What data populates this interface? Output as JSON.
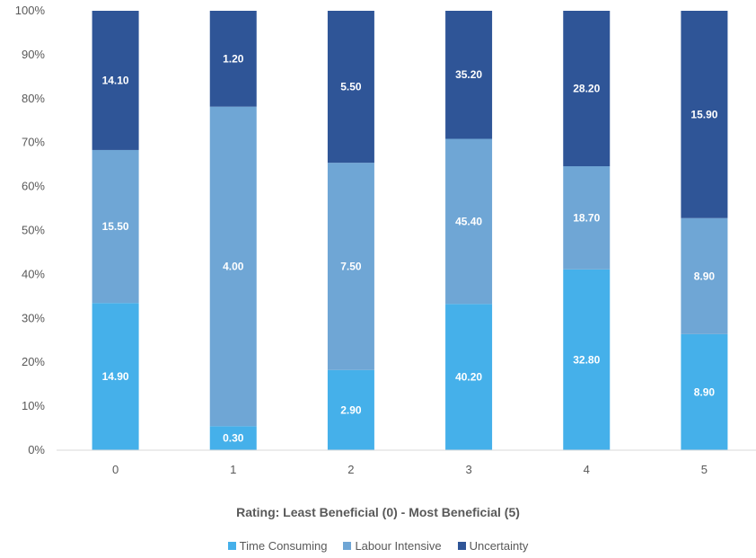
{
  "chart_data": {
    "type": "bar",
    "stacked": "percent",
    "categories": [
      "0",
      "1",
      "2",
      "3",
      "4",
      "5"
    ],
    "series": [
      {
        "name": "Time Consuming",
        "color": "#45b0ea",
        "values": [
          14.9,
          0.3,
          2.9,
          40.2,
          32.8,
          8.9
        ]
      },
      {
        "name": "Labour Intensive",
        "color": "#6fa6d5",
        "values": [
          15.5,
          4.0,
          7.5,
          45.4,
          18.7,
          8.9
        ]
      },
      {
        "name": "Uncertainty",
        "color": "#2f5597",
        "values": [
          14.1,
          1.2,
          5.5,
          35.2,
          28.2,
          15.9
        ]
      }
    ],
    "data_labels": [
      [
        "14.90",
        "0.30",
        "2.90",
        "40.20",
        "32.80",
        "8.90"
      ],
      [
        "15.50",
        "4.00",
        "7.50",
        "45.40",
        "18.70",
        "8.90"
      ],
      [
        "14.10",
        "1.20",
        "5.50",
        "35.20",
        "28.20",
        "15.90"
      ]
    ],
    "y_ticks": [
      "0%",
      "10%",
      "20%",
      "30%",
      "40%",
      "50%",
      "60%",
      "70%",
      "80%",
      "90%",
      "100%"
    ],
    "ylim": [
      0,
      100
    ],
    "xlabel": "Rating: Least  Beneficial (0) - Most Beneficial (5)",
    "ylabel": "",
    "title": "",
    "grid": false,
    "legend_position": "bottom"
  }
}
